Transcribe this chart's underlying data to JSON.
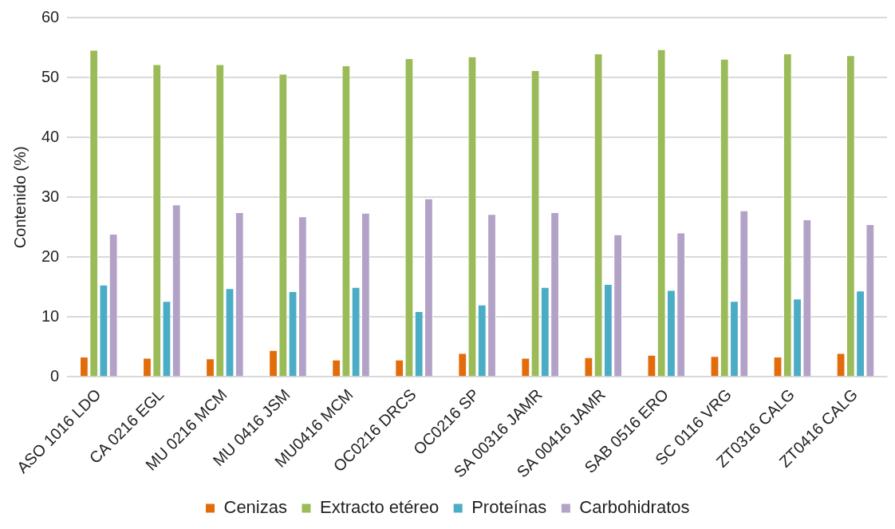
{
  "chart_data": {
    "type": "bar",
    "ylabel": "Contenido (%)",
    "categories": [
      "ASO 1016 LDO",
      "CA 0216 EGL",
      "MU 0216 MCM",
      "MU 0416 JSM",
      "MU0416 MCM",
      "OC0216 DRCS",
      "OC0216 SP",
      "SA 00316 JAMR",
      "SA 00416 JAMR",
      "SAB 0516 ERO",
      "SC 0116 VRG",
      "ZT0316 CALG",
      "ZT0416 CALG"
    ],
    "series": [
      {
        "name": "Cenizas",
        "color": "#e36c0a",
        "values": [
          3.4,
          3.2,
          3.1,
          4.5,
          2.9,
          2.9,
          4.0,
          3.2,
          3.3,
          3.7,
          3.5,
          3.4,
          4.0
        ]
      },
      {
        "name": "Extracto etéreo",
        "color": "#9bbb59",
        "values": [
          54.6,
          52.2,
          52.2,
          50.6,
          52.0,
          53.2,
          53.5,
          51.2,
          54.0,
          54.7,
          53.1,
          54.0,
          53.7
        ]
      },
      {
        "name": "Proteínas",
        "color": "#4bacc6",
        "values": [
          15.4,
          12.7,
          14.8,
          14.3,
          15.0,
          11.0,
          12.1,
          15.0,
          15.5,
          14.5,
          12.7,
          13.1,
          14.4
        ]
      },
      {
        "name": "Carbohidratos",
        "color": "#b3a2c7",
        "values": [
          23.9,
          28.8,
          27.5,
          26.8,
          27.4,
          29.8,
          27.2,
          27.5,
          23.8,
          24.1,
          27.8,
          26.3,
          25.5
        ]
      }
    ],
    "ylim": [
      0,
      60
    ],
    "yticks": [
      0,
      10,
      20,
      30,
      40,
      50,
      60
    ],
    "grid": "y",
    "legend": "bottom"
  }
}
